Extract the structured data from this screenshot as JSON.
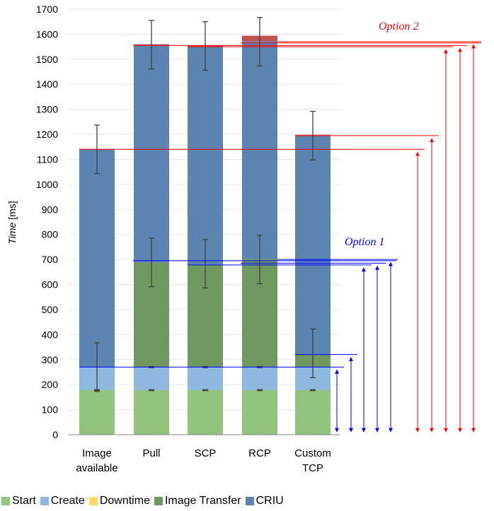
{
  "chart_data": {
    "type": "bar",
    "stacked": true,
    "ylabel": {
      "italic": "Time",
      "rest": " [ms]"
    },
    "ylim": [
      0,
      1700
    ],
    "yticks": [
      0,
      100,
      200,
      300,
      400,
      500,
      600,
      700,
      800,
      900,
      1000,
      1100,
      1200,
      1300,
      1400,
      1500,
      1600,
      1700
    ],
    "categories": [
      [
        "Image",
        "available"
      ],
      [
        "Pull"
      ],
      [
        "SCP"
      ],
      [
        "RCP"
      ],
      [
        "Custom",
        "TCP"
      ]
    ],
    "series": [
      {
        "name": "Start",
        "color": "#93c47d",
        "values": [
          178,
          178,
          178,
          178,
          178
        ]
      },
      {
        "name": "Create",
        "color": "#8fb8e0",
        "values": [
          92,
          92,
          92,
          92,
          92
        ]
      },
      {
        "name": "Downtime",
        "color": "#ffd966",
        "values": [
          0,
          0,
          0,
          0,
          0
        ]
      },
      {
        "name": "Image Transfer",
        "color": "#6e9960",
        "values": [
          0,
          418,
          410,
          432,
          50
        ]
      },
      {
        "name": "CRIU",
        "color": "#5b84b1",
        "values": [
          872,
          870,
          872,
          870,
          876
        ]
      }
    ],
    "top_marker": {
      "color": "#c0504d",
      "values": [
        0,
        2,
        2,
        22,
        2
      ]
    },
    "error_bars": [
      {
        "y": 270,
        "err": 97
      },
      {
        "y": 1140,
        "err": 97
      },
      {
        "y": 178,
        "err": 2,
        "all": true
      },
      {
        "y": 270,
        "err": 2,
        "all": true
      }
    ],
    "error_bars_by_category": [
      [
        {
          "y": 178,
          "err": 2
        },
        {
          "y": 270,
          "err": 97
        },
        {
          "y": 1140,
          "err": 97
        }
      ],
      [
        {
          "y": 178,
          "err": 2
        },
        {
          "y": 270,
          "err": 2
        },
        {
          "y": 688,
          "err": 97
        },
        {
          "y": 1558,
          "err": 97
        }
      ],
      [
        {
          "y": 178,
          "err": 2
        },
        {
          "y": 270,
          "err": 2
        },
        {
          "y": 683,
          "err": 97
        },
        {
          "y": 1553,
          "err": 97
        }
      ],
      [
        {
          "y": 178,
          "err": 2
        },
        {
          "y": 270,
          "err": 2
        },
        {
          "y": 700,
          "err": 97
        },
        {
          "y": 1570,
          "err": 97
        }
      ],
      [
        {
          "y": 178,
          "err": 2
        },
        {
          "y": 325,
          "err": 97
        },
        {
          "y": 1195,
          "err": 97
        }
      ]
    ],
    "annotations": {
      "option1": {
        "label": "Option 1",
        "color": "#0000ff",
        "levels": [
          270,
          320,
          678,
          685,
          695,
          700
        ]
      },
      "option2": {
        "label": "Option 2",
        "color": "#ff0000",
        "levels": [
          1140,
          1195,
          1550,
          1555,
          1565,
          1570
        ]
      }
    },
    "legend": [
      "Start",
      "Create",
      "Downtime",
      "Image Transfer",
      "CRIU"
    ]
  }
}
